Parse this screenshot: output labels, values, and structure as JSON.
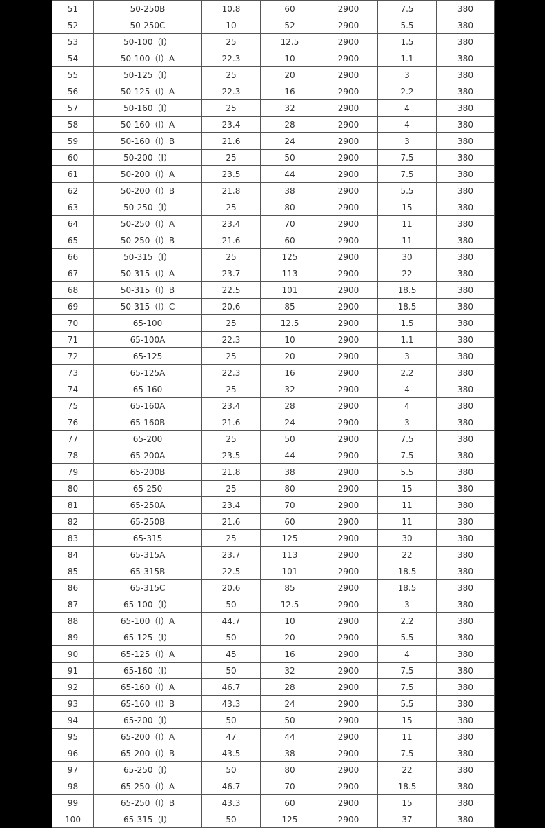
{
  "table": {
    "rows": [
      [
        "51",
        "50-250B",
        "10.8",
        "60",
        "2900",
        "7.5",
        "380"
      ],
      [
        "52",
        "50-250C",
        "10",
        "52",
        "2900",
        "5.5",
        "380"
      ],
      [
        "53",
        "50-100（I）",
        "25",
        "12.5",
        "2900",
        "1.5",
        "380"
      ],
      [
        "54",
        "50-100（I）A",
        "22.3",
        "10",
        "2900",
        "1.1",
        "380"
      ],
      [
        "55",
        "50-125（I）",
        "25",
        "20",
        "2900",
        "3",
        "380"
      ],
      [
        "56",
        "50-125（I）A",
        "22.3",
        "16",
        "2900",
        "2.2",
        "380"
      ],
      [
        "57",
        "50-160（I）",
        "25",
        "32",
        "2900",
        "4",
        "380"
      ],
      [
        "58",
        "50-160（I）A",
        "23.4",
        "28",
        "2900",
        "4",
        "380"
      ],
      [
        "59",
        "50-160（I）B",
        "21.6",
        "24",
        "2900",
        "3",
        "380"
      ],
      [
        "60",
        "50-200（I）",
        "25",
        "50",
        "2900",
        "7.5",
        "380"
      ],
      [
        "61",
        "50-200（I）A",
        "23.5",
        "44",
        "2900",
        "7.5",
        "380"
      ],
      [
        "62",
        "50-200（I）B",
        "21.8",
        "38",
        "2900",
        "5.5",
        "380"
      ],
      [
        "63",
        "50-250（I）",
        "25",
        "80",
        "2900",
        "15",
        "380"
      ],
      [
        "64",
        "50-250（I）A",
        "23.4",
        "70",
        "2900",
        "11",
        "380"
      ],
      [
        "65",
        "50-250（I）B",
        "21.6",
        "60",
        "2900",
        "11",
        "380"
      ],
      [
        "66",
        "50-315（I）",
        "25",
        "125",
        "2900",
        "30",
        "380"
      ],
      [
        "67",
        "50-315（I）A",
        "23.7",
        "113",
        "2900",
        "22",
        "380"
      ],
      [
        "68",
        "50-315（I）B",
        "22.5",
        "101",
        "2900",
        "18.5",
        "380"
      ],
      [
        "69",
        "50-315（I）C",
        "20.6",
        "85",
        "2900",
        "18.5",
        "380"
      ],
      [
        "70",
        "65-100",
        "25",
        "12.5",
        "2900",
        "1.5",
        "380"
      ],
      [
        "71",
        "65-100A",
        "22.3",
        "10",
        "2900",
        "1.1",
        "380"
      ],
      [
        "72",
        "65-125",
        "25",
        "20",
        "2900",
        "3",
        "380"
      ],
      [
        "73",
        "65-125A",
        "22.3",
        "16",
        "2900",
        "2.2",
        "380"
      ],
      [
        "74",
        "65-160",
        "25",
        "32",
        "2900",
        "4",
        "380"
      ],
      [
        "75",
        "65-160A",
        "23.4",
        "28",
        "2900",
        "4",
        "380"
      ],
      [
        "76",
        "65-160B",
        "21.6",
        "24",
        "2900",
        "3",
        "380"
      ],
      [
        "77",
        "65-200",
        "25",
        "50",
        "2900",
        "7.5",
        "380"
      ],
      [
        "78",
        "65-200A",
        "23.5",
        "44",
        "2900",
        "7.5",
        "380"
      ],
      [
        "79",
        "65-200B",
        "21.8",
        "38",
        "2900",
        "5.5",
        "380"
      ],
      [
        "80",
        "65-250",
        "25",
        "80",
        "2900",
        "15",
        "380"
      ],
      [
        "81",
        "65-250A",
        "23.4",
        "70",
        "2900",
        "11",
        "380"
      ],
      [
        "82",
        "65-250B",
        "21.6",
        "60",
        "2900",
        "11",
        "380"
      ],
      [
        "83",
        "65-315",
        "25",
        "125",
        "2900",
        "30",
        "380"
      ],
      [
        "84",
        "65-315A",
        "23.7",
        "113",
        "2900",
        "22",
        "380"
      ],
      [
        "85",
        "65-315B",
        "22.5",
        "101",
        "2900",
        "18.5",
        "380"
      ],
      [
        "86",
        "65-315C",
        "20.6",
        "85",
        "2900",
        "18.5",
        "380"
      ],
      [
        "87",
        "65-100（I）",
        "50",
        "12.5",
        "2900",
        "3",
        "380"
      ],
      [
        "88",
        "65-100（I）A",
        "44.7",
        "10",
        "2900",
        "2.2",
        "380"
      ],
      [
        "89",
        "65-125（I）",
        "50",
        "20",
        "2900",
        "5.5",
        "380"
      ],
      [
        "90",
        "65-125（I）A",
        "45",
        "16",
        "2900",
        "4",
        "380"
      ],
      [
        "91",
        "65-160（I）",
        "50",
        "32",
        "2900",
        "7.5",
        "380"
      ],
      [
        "92",
        "65-160（I）A",
        "46.7",
        "28",
        "2900",
        "7.5",
        "380"
      ],
      [
        "93",
        "65-160（I）B",
        "43.3",
        "24",
        "2900",
        "5.5",
        "380"
      ],
      [
        "94",
        "65-200（I）",
        "50",
        "50",
        "2900",
        "15",
        "380"
      ],
      [
        "95",
        "65-200（I）A",
        "47",
        "44",
        "2900",
        "11",
        "380"
      ],
      [
        "96",
        "65-200（I）B",
        "43.5",
        "38",
        "2900",
        "7.5",
        "380"
      ],
      [
        "97",
        "65-250（I）",
        "50",
        "80",
        "2900",
        "22",
        "380"
      ],
      [
        "98",
        "65-250（I）A",
        "46.7",
        "70",
        "2900",
        "18.5",
        "380"
      ],
      [
        "99",
        "65-250（I）B",
        "43.3",
        "60",
        "2900",
        "15",
        "380"
      ],
      [
        "100",
        "65-315（I）",
        "50",
        "125",
        "2900",
        "37",
        "380"
      ]
    ]
  }
}
